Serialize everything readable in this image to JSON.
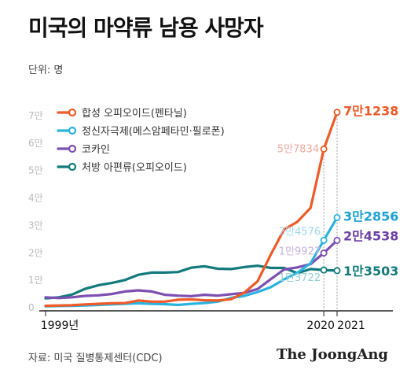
{
  "title": "미국의 마약류 남용 사망자",
  "unit_label": "단위: 명",
  "source": "자료: 미국 질병통제센터(CDC)",
  "brand": "The JoongAng",
  "chart_data": {
    "type": "line",
    "title": "미국의 마약류 남용 사망자",
    "ylabel": "단위: 명",
    "ylim": [
      0,
      75000
    ],
    "y_ticks": [
      0,
      10000,
      20000,
      30000,
      40000,
      50000,
      60000,
      70000
    ],
    "y_tick_labels": [
      "0",
      "1만",
      "2만",
      "3만",
      "4만",
      "5만",
      "6만",
      "7만"
    ],
    "x_tick_labels": [
      "1999년",
      "2020",
      "2021"
    ],
    "x": [
      1999,
      2000,
      2001,
      2002,
      2003,
      2004,
      2005,
      2006,
      2007,
      2008,
      2009,
      2010,
      2011,
      2012,
      2013,
      2014,
      2015,
      2016,
      2017,
      2018,
      2019,
      2020,
      2021
    ],
    "legend_position": "top-left",
    "grid": false,
    "series": [
      {
        "name": "합성 오피오이드(펜타닐)",
        "color": "#f05a28",
        "values": [
          700,
          800,
          900,
          1200,
          1400,
          1600,
          1700,
          2600,
          2200,
          2200,
          2900,
          3000,
          2700,
          2600,
          3100,
          5500,
          9600,
          19400,
          28500,
          31300,
          36400,
          57834,
          71238
        ]
      },
      {
        "name": "정신자극제(메스암페타민·필로폰)",
        "color": "#2bb3e0",
        "values": [
          500,
          600,
          700,
          800,
          1000,
          1200,
          1400,
          1600,
          1400,
          1300,
          1000,
          1400,
          1700,
          2200,
          3600,
          4300,
          5700,
          7500,
          10300,
          12700,
          16200,
          24576,
          32856
        ]
      },
      {
        "name": "코카인",
        "color": "#7e4fb3",
        "values": [
          3800,
          3500,
          3800,
          4300,
          4500,
          5000,
          5900,
          6300,
          5900,
          4700,
          4400,
          4200,
          4700,
          4400,
          4900,
          5400,
          6800,
          10400,
          13900,
          14700,
          15900,
          19927,
          24538
        ]
      },
      {
        "name": "처방 아편류(오피오이드)",
        "color": "#127a7b",
        "values": [
          3400,
          3800,
          4800,
          6900,
          8200,
          9000,
          10100,
          12000,
          12800,
          12800,
          13000,
          14600,
          15100,
          14200,
          14100,
          14800,
          15300,
          14500,
          14500,
          12600,
          14100,
          13722,
          13503
        ]
      }
    ],
    "annotations": [
      {
        "series": 0,
        "year": 2020,
        "label": "5만7834"
      },
      {
        "series": 0,
        "year": 2021,
        "label": "7만1238"
      },
      {
        "series": 1,
        "year": 2020,
        "label": "2만4576"
      },
      {
        "series": 1,
        "year": 2021,
        "label": "3만2856"
      },
      {
        "series": 2,
        "year": 2020,
        "label": "1만9927"
      },
      {
        "series": 2,
        "year": 2021,
        "label": "2만4538"
      },
      {
        "series": 3,
        "year": 2020,
        "label": "1만3722"
      },
      {
        "series": 3,
        "year": 2021,
        "label": "1만3503"
      }
    ]
  }
}
